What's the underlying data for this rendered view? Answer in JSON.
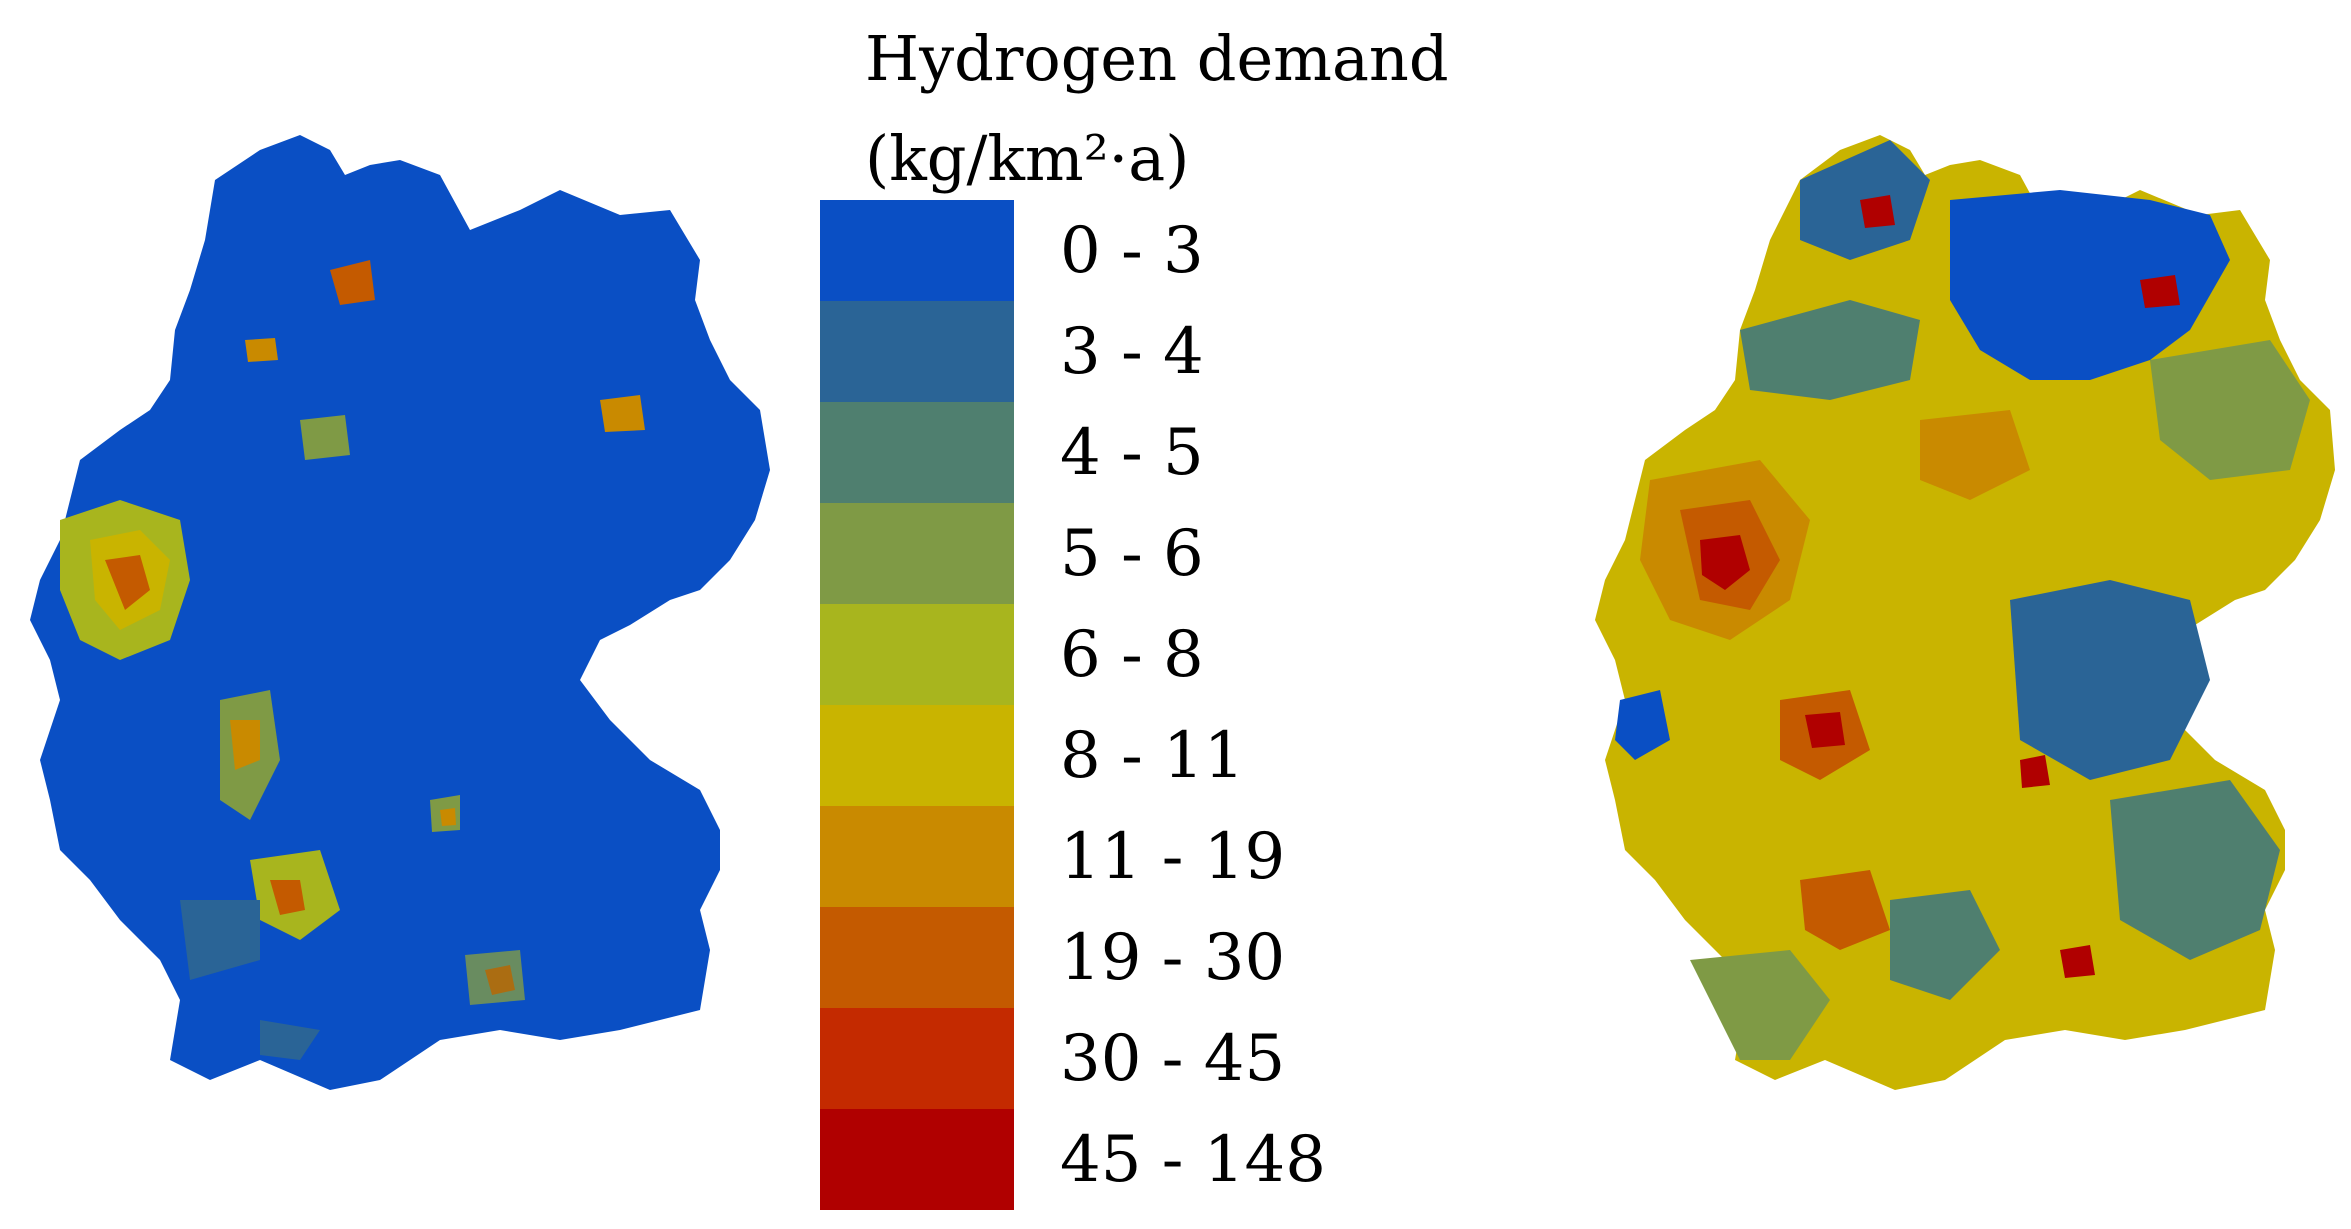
{
  "legend": {
    "title_line1": "Hydrogen demand",
    "title_line2": "(kg/km²·a)",
    "classes": [
      {
        "label": "0 - 3",
        "color": "#0a4fc4"
      },
      {
        "label": "3 - 4",
        "color": "#2a6496"
      },
      {
        "label": "4 - 5",
        "color": "#4f7f6f"
      },
      {
        "label": "5 - 6",
        "color": "#7f9a45"
      },
      {
        "label": "6 - 8",
        "color": "#a8b51e"
      },
      {
        "label": "8 - 11",
        "color": "#c9b400"
      },
      {
        "label": "11 - 19",
        "color": "#c98a00"
      },
      {
        "label": "19 - 30",
        "color": "#c45a00"
      },
      {
        "label": "30 - 45",
        "color": "#c42a00"
      },
      {
        "label": "45 - 148",
        "color": "#b00000"
      }
    ]
  },
  "maps": [
    {
      "name": "left",
      "dominant_class": 0
    },
    {
      "name": "right",
      "dominant_class": 5
    }
  ]
}
